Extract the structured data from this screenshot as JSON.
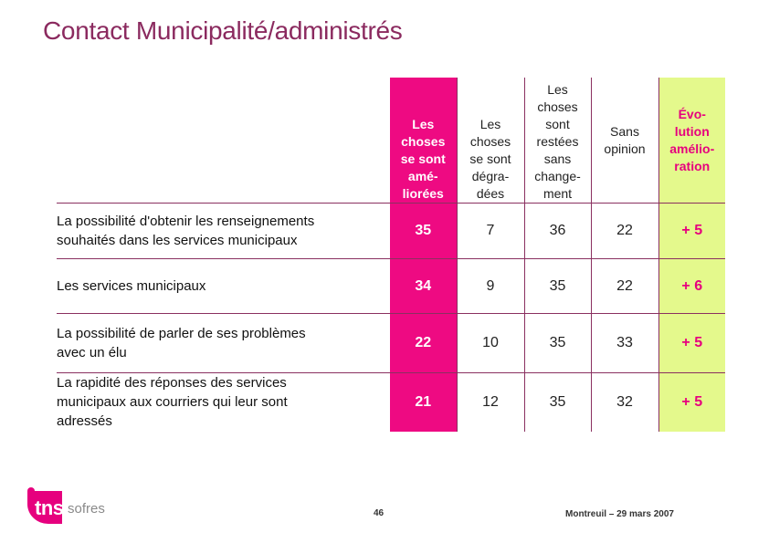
{
  "title": "Contact Municipalité/administrés",
  "columns": [
    {
      "lines": [
        "Les",
        "choses",
        "se sont",
        "amé-",
        "liorées"
      ]
    },
    {
      "lines": [
        "Les",
        "choses",
        "se sont",
        "dégra-",
        "dées"
      ]
    },
    {
      "lines": [
        "Les",
        "choses",
        "sont",
        "restées",
        "sans",
        "change-",
        "ment"
      ]
    },
    {
      "lines": [
        "Sans",
        "opinion"
      ]
    },
    {
      "lines": [
        "Évo-",
        "lution",
        "amélio-",
        "ration"
      ]
    }
  ],
  "rows": [
    {
      "label": [
        "La possibilité d'obtenir les renseignements",
        "souhaités dans les services municipaux"
      ],
      "values": [
        "35",
        "7",
        "36",
        "22",
        "+ 5"
      ]
    },
    {
      "label": [
        "Les services municipaux"
      ],
      "values": [
        "34",
        "9",
        "35",
        "22",
        "+ 6"
      ]
    },
    {
      "label": [
        "La possibilité de parler de ses problèmes",
        "avec un élu"
      ],
      "values": [
        "22",
        "10",
        "35",
        "33",
        "+ 5"
      ]
    },
    {
      "label": [
        "La rapidité des réponses des services",
        "municipaux aux courriers qui leur sont",
        "adressés"
      ],
      "values": [
        "21",
        "12",
        "35",
        "32",
        "+ 5"
      ]
    }
  ],
  "footer": {
    "page_number": "46",
    "location_date": "Montreuil – 29 mars 2007",
    "logo_primary": "tns",
    "logo_secondary": "sofres"
  },
  "colors": {
    "title": "#8b2a5f",
    "accent_pink": "#ee0a82",
    "accent_green": "#e4f98c",
    "rule": "#8a3060"
  }
}
